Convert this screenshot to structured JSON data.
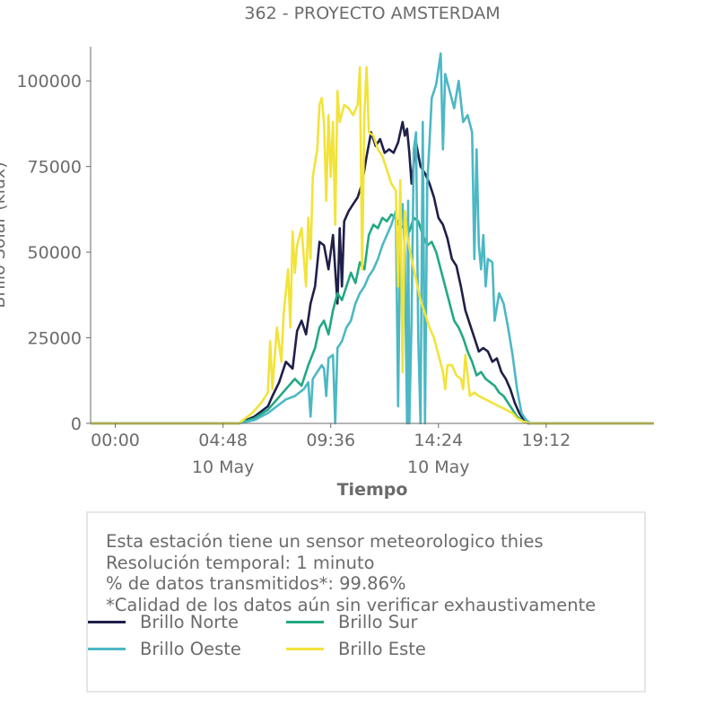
{
  "chart_data": {
    "type": "line",
    "title": "362 - PROYECTO AMSTERDAM",
    "xlabel": "Tiempo",
    "ylabel": "Brillo Solar (klux)",
    "x_unit": "hours",
    "xlim": [
      -1.1,
      24.0
    ],
    "ylim": [
      0,
      110000
    ],
    "x_ticks": [
      {
        "value": 0,
        "label": "00:00",
        "sublabel": ""
      },
      {
        "value": 4.8,
        "label": "04:48",
        "sublabel": "10 May"
      },
      {
        "value": 9.6,
        "label": "09:36",
        "sublabel": ""
      },
      {
        "value": 14.4,
        "label": "14:24",
        "sublabel": "10 May"
      },
      {
        "value": 19.2,
        "label": "19:12",
        "sublabel": ""
      }
    ],
    "y_ticks": [
      0,
      25000,
      50000,
      75000,
      100000
    ],
    "y_tick_labels": [
      "0",
      "25000",
      "50000",
      "75000",
      "100000"
    ],
    "legend_position": "bottom",
    "series": [
      {
        "name": "Brillo Norte",
        "color": "#1f1f4a",
        "points": [
          [
            -1.1,
            0
          ],
          [
            5.5,
            0
          ],
          [
            6.2,
            2000
          ],
          [
            6.8,
            5000
          ],
          [
            7.0,
            8000
          ],
          [
            7.3,
            12000
          ],
          [
            7.6,
            18000
          ],
          [
            7.9,
            16000
          ],
          [
            8.1,
            27000
          ],
          [
            8.3,
            30000
          ],
          [
            8.5,
            26000
          ],
          [
            8.7,
            35000
          ],
          [
            8.9,
            40000
          ],
          [
            9.1,
            53000
          ],
          [
            9.3,
            52000
          ],
          [
            9.5,
            45000
          ],
          [
            9.7,
            55000
          ],
          [
            9.9,
            35000
          ],
          [
            10.0,
            57000
          ],
          [
            10.1,
            40000
          ],
          [
            10.2,
            59000
          ],
          [
            10.4,
            62000
          ],
          [
            10.6,
            64000
          ],
          [
            10.8,
            66000
          ],
          [
            11.0,
            70000
          ],
          [
            11.2,
            78000
          ],
          [
            11.4,
            85000
          ],
          [
            11.6,
            81000
          ],
          [
            11.8,
            83000
          ],
          [
            12.0,
            79000
          ],
          [
            12.2,
            80000
          ],
          [
            12.4,
            79000
          ],
          [
            12.6,
            82000
          ],
          [
            12.8,
            88000
          ],
          [
            12.9,
            84000
          ],
          [
            13.0,
            86000
          ],
          [
            13.1,
            79000
          ],
          [
            13.2,
            70000
          ],
          [
            13.4,
            82000
          ],
          [
            13.6,
            75000
          ],
          [
            13.8,
            73000
          ],
          [
            14.0,
            70000
          ],
          [
            14.2,
            66000
          ],
          [
            14.4,
            60000
          ],
          [
            14.6,
            58000
          ],
          [
            14.8,
            54000
          ],
          [
            15.0,
            48000
          ],
          [
            15.2,
            46000
          ],
          [
            15.4,
            40000
          ],
          [
            15.6,
            33000
          ],
          [
            15.8,
            29000
          ],
          [
            16.0,
            25000
          ],
          [
            16.2,
            21000
          ],
          [
            16.4,
            22000
          ],
          [
            16.6,
            21000
          ],
          [
            16.8,
            18000
          ],
          [
            17.0,
            19000
          ],
          [
            17.2,
            15000
          ],
          [
            17.4,
            13000
          ],
          [
            17.6,
            10000
          ],
          [
            17.8,
            6000
          ],
          [
            18.0,
            3000
          ],
          [
            18.2,
            1000
          ],
          [
            18.4,
            0
          ],
          [
            24.0,
            0
          ]
        ]
      },
      {
        "name": "Brillo Sur",
        "color": "#22a884",
        "points": [
          [
            -1.1,
            0
          ],
          [
            5.5,
            0
          ],
          [
            6.2,
            1500
          ],
          [
            6.8,
            4000
          ],
          [
            7.2,
            7000
          ],
          [
            7.6,
            10000
          ],
          [
            8.0,
            13000
          ],
          [
            8.3,
            11000
          ],
          [
            8.6,
            17000
          ],
          [
            8.9,
            22000
          ],
          [
            9.1,
            28000
          ],
          [
            9.3,
            30000
          ],
          [
            9.5,
            26000
          ],
          [
            9.7,
            33000
          ],
          [
            9.9,
            38000
          ],
          [
            10.1,
            36000
          ],
          [
            10.3,
            40000
          ],
          [
            10.5,
            44000
          ],
          [
            10.7,
            41000
          ],
          [
            10.9,
            47000
          ],
          [
            11.0,
            46000
          ],
          [
            11.1,
            45000
          ],
          [
            11.3,
            55000
          ],
          [
            11.5,
            58000
          ],
          [
            11.7,
            57000
          ],
          [
            11.9,
            60000
          ],
          [
            12.1,
            59000
          ],
          [
            12.3,
            61000
          ],
          [
            12.5,
            60000
          ],
          [
            12.7,
            57000
          ],
          [
            12.9,
            58000
          ],
          [
            13.1,
            56000
          ],
          [
            13.3,
            60000
          ],
          [
            13.5,
            59000
          ],
          [
            13.7,
            55000
          ],
          [
            13.9,
            52000
          ],
          [
            14.1,
            53000
          ],
          [
            14.3,
            50000
          ],
          [
            14.5,
            45000
          ],
          [
            14.7,
            40000
          ],
          [
            14.9,
            35000
          ],
          [
            15.1,
            30000
          ],
          [
            15.3,
            28000
          ],
          [
            15.5,
            25000
          ],
          [
            15.7,
            21000
          ],
          [
            15.9,
            18000
          ],
          [
            16.1,
            14000
          ],
          [
            16.3,
            15000
          ],
          [
            16.5,
            13000
          ],
          [
            16.7,
            12000
          ],
          [
            16.9,
            11000
          ],
          [
            17.1,
            9000
          ],
          [
            17.3,
            8000
          ],
          [
            17.5,
            6000
          ],
          [
            17.7,
            4000
          ],
          [
            17.9,
            2000
          ],
          [
            18.2,
            500
          ],
          [
            18.5,
            0
          ],
          [
            24.0,
            0
          ]
        ]
      },
      {
        "name": "Brillo Oeste",
        "color": "#4cb8c4",
        "points": [
          [
            -1.1,
            0
          ],
          [
            5.5,
            0
          ],
          [
            6.2,
            1000
          ],
          [
            6.8,
            3000
          ],
          [
            7.2,
            5000
          ],
          [
            7.6,
            7000
          ],
          [
            8.0,
            8000
          ],
          [
            8.4,
            10000
          ],
          [
            8.6,
            12000
          ],
          [
            8.7,
            2000
          ],
          [
            8.8,
            13000
          ],
          [
            9.0,
            15000
          ],
          [
            9.2,
            17000
          ],
          [
            9.3,
            16000
          ],
          [
            9.4,
            8000
          ],
          [
            9.5,
            19000
          ],
          [
            9.7,
            20000
          ],
          [
            9.8,
            0
          ],
          [
            9.9,
            22000
          ],
          [
            10.1,
            24000
          ],
          [
            10.3,
            28000
          ],
          [
            10.5,
            30000
          ],
          [
            10.7,
            35000
          ],
          [
            10.9,
            38000
          ],
          [
            11.1,
            40000
          ],
          [
            11.3,
            43000
          ],
          [
            11.5,
            45000
          ],
          [
            11.7,
            48000
          ],
          [
            11.9,
            52000
          ],
          [
            12.1,
            55000
          ],
          [
            12.3,
            58000
          ],
          [
            12.4,
            60000
          ],
          [
            12.5,
            62000
          ],
          [
            12.6,
            5000
          ],
          [
            12.7,
            58000
          ],
          [
            12.8,
            64000
          ],
          [
            12.9,
            50000
          ],
          [
            13.0,
            0
          ],
          [
            13.05,
            65000
          ],
          [
            13.1,
            0
          ],
          [
            13.2,
            30000
          ],
          [
            13.3,
            80000
          ],
          [
            13.4,
            85000
          ],
          [
            13.5,
            25000
          ],
          [
            13.6,
            0
          ],
          [
            13.7,
            88000
          ],
          [
            13.8,
            0
          ],
          [
            13.9,
            70000
          ],
          [
            14.0,
            82000
          ],
          [
            14.1,
            95000
          ],
          [
            14.3,
            99000
          ],
          [
            14.5,
            108000
          ],
          [
            14.6,
            80000
          ],
          [
            14.7,
            102000
          ],
          [
            14.9,
            97000
          ],
          [
            15.1,
            92000
          ],
          [
            15.3,
            100000
          ],
          [
            15.5,
            88000
          ],
          [
            15.7,
            90000
          ],
          [
            15.9,
            85000
          ],
          [
            16.0,
            48000
          ],
          [
            16.1,
            80000
          ],
          [
            16.2,
            52000
          ],
          [
            16.3,
            45000
          ],
          [
            16.4,
            55000
          ],
          [
            16.5,
            40000
          ],
          [
            16.6,
            48000
          ],
          [
            16.8,
            47000
          ],
          [
            16.9,
            30000
          ],
          [
            17.1,
            38000
          ],
          [
            17.3,
            35000
          ],
          [
            17.5,
            28000
          ],
          [
            17.7,
            20000
          ],
          [
            17.9,
            10000
          ],
          [
            18.1,
            3000
          ],
          [
            18.3,
            1000
          ],
          [
            18.5,
            0
          ],
          [
            24.0,
            0
          ]
        ]
      },
      {
        "name": "Brillo Este",
        "color": "#f2e33a",
        "points": [
          [
            -1.1,
            0
          ],
          [
            5.5,
            0
          ],
          [
            6.1,
            3000
          ],
          [
            6.5,
            6000
          ],
          [
            6.8,
            9000
          ],
          [
            6.9,
            24000
          ],
          [
            7.0,
            10000
          ],
          [
            7.2,
            28000
          ],
          [
            7.4,
            18000
          ],
          [
            7.5,
            32000
          ],
          [
            7.7,
            45000
          ],
          [
            7.8,
            28000
          ],
          [
            7.9,
            56000
          ],
          [
            8.0,
            44000
          ],
          [
            8.1,
            52000
          ],
          [
            8.3,
            57000
          ],
          [
            8.5,
            40000
          ],
          [
            8.6,
            60000
          ],
          [
            8.7,
            48000
          ],
          [
            8.8,
            72000
          ],
          [
            9.0,
            80000
          ],
          [
            9.1,
            93000
          ],
          [
            9.2,
            95000
          ],
          [
            9.3,
            88000
          ],
          [
            9.4,
            65000
          ],
          [
            9.5,
            90000
          ],
          [
            9.6,
            72000
          ],
          [
            9.7,
            88000
          ],
          [
            9.8,
            58000
          ],
          [
            9.9,
            97000
          ],
          [
            10.0,
            88000
          ],
          [
            10.2,
            93000
          ],
          [
            10.4,
            92000
          ],
          [
            10.6,
            90000
          ],
          [
            10.8,
            93000
          ],
          [
            10.9,
            104000
          ],
          [
            11.0,
            45000
          ],
          [
            11.1,
            90000
          ],
          [
            11.2,
            104000
          ],
          [
            11.3,
            85000
          ],
          [
            11.5,
            84000
          ],
          [
            11.7,
            80000
          ],
          [
            11.9,
            78000
          ],
          [
            12.1,
            74000
          ],
          [
            12.3,
            70000
          ],
          [
            12.5,
            68000
          ],
          [
            12.6,
            40000
          ],
          [
            12.7,
            71000
          ],
          [
            12.8,
            15000
          ],
          [
            12.9,
            62000
          ],
          [
            13.0,
            55000
          ],
          [
            13.2,
            48000
          ],
          [
            13.4,
            42000
          ],
          [
            13.6,
            36000
          ],
          [
            13.8,
            32000
          ],
          [
            14.0,
            28000
          ],
          [
            14.2,
            25000
          ],
          [
            14.4,
            20000
          ],
          [
            14.6,
            15000
          ],
          [
            14.7,
            10000
          ],
          [
            14.8,
            17000
          ],
          [
            15.0,
            17000
          ],
          [
            15.2,
            14000
          ],
          [
            15.4,
            13000
          ],
          [
            15.5,
            10000
          ],
          [
            15.6,
            20000
          ],
          [
            15.8,
            8000
          ],
          [
            16.0,
            9000
          ],
          [
            16.2,
            8000
          ],
          [
            16.5,
            7000
          ],
          [
            16.8,
            6000
          ],
          [
            17.1,
            5000
          ],
          [
            17.4,
            4000
          ],
          [
            17.7,
            3000
          ],
          [
            17.9,
            1500
          ],
          [
            18.2,
            500
          ],
          [
            18.5,
            0
          ],
          [
            24.0,
            0
          ]
        ]
      }
    ]
  },
  "info": {
    "line1": "Esta estación tiene un sensor meteorologico thies",
    "line2": "Resolución temporal: 1 minuto",
    "line3": "% de datos transmitidos*: 99.86%",
    "line4": "*Calidad de los datos aún sin verificar exhaustivamente"
  },
  "legend": [
    {
      "label": "Brillo Norte",
      "color": "#1f1f4a"
    },
    {
      "label": "Brillo Sur",
      "color": "#22a884"
    },
    {
      "label": "Brillo Oeste",
      "color": "#4cb8c4"
    },
    {
      "label": "Brillo Este",
      "color": "#f2e33a"
    }
  ]
}
